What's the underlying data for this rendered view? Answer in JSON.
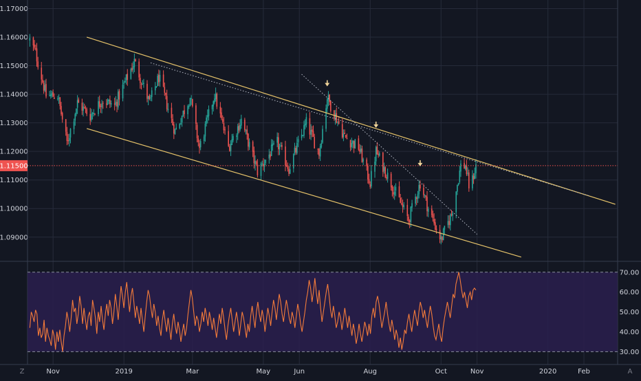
{
  "colors": {
    "background": "#131722",
    "grid": "#262b3a",
    "up": "#26a69a",
    "down": "#ef5350",
    "trendline": "#e6c36a",
    "rsi_line": "#f57c3a",
    "rsi_band": "#2a1f4d",
    "axis_text": "#d1d4dc",
    "price_label": "#ef5350"
  },
  "ui": {
    "bottom_left_button": "Z",
    "bottom_right_button": "A"
  },
  "chart_data": [
    {
      "type": "candlestick",
      "panel": "price",
      "x_range": [
        "2018-10-10",
        "2020-03-01"
      ],
      "ylim": [
        1.082,
        1.173
      ],
      "y_ticks": [
        "1.09000",
        "1.10000",
        "1.11000",
        "1.12000",
        "1.13000",
        "1.14000",
        "1.15000",
        "1.16000",
        "1.17000"
      ],
      "x_ticks": [
        {
          "label": "Nov",
          "date": "2018-11-01"
        },
        {
          "label": "2019",
          "date": "2019-01-01"
        },
        {
          "label": "Mar",
          "date": "2019-03-01"
        },
        {
          "label": "May",
          "date": "2019-05-01"
        },
        {
          "label": "Jun",
          "date": "2019-06-01"
        },
        {
          "label": "Aug",
          "date": "2019-08-01"
        },
        {
          "label": "Oct",
          "date": "2019-10-01"
        },
        {
          "label": "Nov",
          "date": "2019-11-01"
        },
        {
          "label": "2020",
          "date": "2020-01-01"
        },
        {
          "label": "Feb",
          "date": "2020-02-01"
        }
      ],
      "grid": true,
      "current_price": "1.11500",
      "price_path": [
        [
          "2018-10-12",
          1.159
        ],
        [
          "2018-10-17",
          1.1545
        ],
        [
          "2018-10-26",
          1.1395
        ],
        [
          "2018-11-05",
          1.1395
        ],
        [
          "2018-11-13",
          1.123
        ],
        [
          "2018-11-22",
          1.137
        ],
        [
          "2018-12-03",
          1.1325
        ],
        [
          "2018-12-13",
          1.138
        ],
        [
          "2018-12-24",
          1.136
        ],
        [
          "2019-01-10",
          1.1515
        ],
        [
          "2019-01-23",
          1.137
        ],
        [
          "2019-01-31",
          1.146
        ],
        [
          "2019-02-14",
          1.127
        ],
        [
          "2019-02-27",
          1.139
        ],
        [
          "2019-03-07",
          1.121
        ],
        [
          "2019-03-20",
          1.14
        ],
        [
          "2019-04-01",
          1.1215
        ],
        [
          "2019-04-12",
          1.131
        ],
        [
          "2019-04-26",
          1.113
        ],
        [
          "2019-05-13",
          1.123
        ],
        [
          "2019-05-23",
          1.114
        ],
        [
          "2019-06-07",
          1.13
        ],
        [
          "2019-06-18",
          1.1195
        ],
        [
          "2019-06-25",
          1.139
        ],
        [
          "2019-07-10",
          1.125
        ],
        [
          "2019-07-22",
          1.1215
        ],
        [
          "2019-08-01",
          1.109
        ],
        [
          "2019-08-06",
          1.12
        ],
        [
          "2019-08-20",
          1.108
        ],
        [
          "2019-09-03",
          1.096
        ],
        [
          "2019-09-13",
          1.109
        ],
        [
          "2019-09-20",
          1.1
        ],
        [
          "2019-10-01",
          1.089
        ],
        [
          "2019-10-10",
          1.098
        ],
        [
          "2019-10-18",
          1.115
        ],
        [
          "2019-10-22",
          1.115
        ],
        [
          "2019-10-25",
          1.108
        ],
        [
          "2019-10-28",
          1.11
        ],
        [
          "2019-10-31",
          1.115
        ]
      ],
      "trendlines": [
        {
          "name": "channel-top",
          "style": "solid",
          "from": [
            "2018-11-30",
            1.16
          ],
          "to": [
            "2020-02-28",
            1.1015
          ]
        },
        {
          "name": "channel-bottom",
          "style": "solid",
          "from": [
            "2018-11-30",
            1.128
          ],
          "to": [
            "2019-12-09",
            1.083
          ]
        },
        {
          "name": "dotted-top",
          "style": "dotted",
          "from": [
            "2019-01-24",
            1.151
          ],
          "to": [
            "2020-02-05",
            1.1045
          ]
        },
        {
          "name": "dotted-diagonal",
          "style": "dotted",
          "from": [
            "2019-06-03",
            1.147
          ],
          "to": [
            "2019-11-01",
            1.091
          ]
        }
      ],
      "price_line": {
        "value": 1.115,
        "style": "dotted"
      },
      "markers": [
        {
          "date": "2019-06-25",
          "value": 1.143
        },
        {
          "date": "2019-08-06",
          "value": 1.1285
        },
        {
          "date": "2019-09-13",
          "value": 1.115
        }
      ]
    },
    {
      "type": "line",
      "panel": "rsi",
      "ylim": [
        27,
        72
      ],
      "y_ticks": [
        "30.00",
        "40.00",
        "50.00",
        "60.00",
        "70.00"
      ],
      "levels": [
        30,
        70
      ],
      "series": [
        {
          "values": [
            42,
            50,
            48,
            45,
            51,
            49,
            38,
            42,
            37,
            39,
            46,
            35,
            42,
            38,
            36,
            33,
            41,
            38,
            31,
            40,
            35,
            41,
            35,
            30,
            38,
            43,
            50,
            46,
            40,
            47,
            56,
            50,
            52,
            44,
            49,
            58,
            53,
            44,
            52,
            46,
            41,
            48,
            50,
            43,
            56,
            52,
            47,
            39,
            50,
            45,
            53,
            46,
            41,
            49,
            54,
            48,
            56,
            52,
            44,
            50,
            59,
            53,
            46,
            55,
            63,
            58,
            52,
            60,
            65,
            57,
            50,
            58,
            62,
            55,
            47,
            53,
            49,
            44,
            52,
            46,
            40,
            48,
            55,
            61,
            58,
            52,
            47,
            54,
            50,
            43,
            48,
            42,
            38,
            46,
            51,
            45,
            40,
            47,
            42,
            36,
            44,
            49,
            43,
            39,
            45,
            41,
            35,
            40,
            44,
            38,
            42,
            49,
            55,
            61,
            57,
            50,
            43,
            48,
            46,
            40,
            44,
            50,
            45,
            52,
            48,
            43,
            50,
            46,
            41,
            47,
            42,
            37,
            43,
            49,
            44,
            52,
            47,
            41,
            36,
            43,
            48,
            52,
            46,
            40,
            45,
            50,
            45,
            38,
            44,
            50,
            47,
            42,
            37,
            44,
            40,
            48,
            53,
            47,
            42,
            50,
            55,
            49,
            45,
            51,
            47,
            40,
            46,
            52,
            48,
            43,
            50,
            56,
            52,
            46,
            53,
            59,
            55,
            49,
            45,
            51,
            56,
            52,
            47,
            44,
            50,
            47,
            42,
            48,
            54,
            50,
            44,
            40,
            45,
            50,
            56,
            60,
            66,
            62,
            55,
            60,
            67,
            60,
            54,
            61,
            52,
            45,
            50,
            55,
            60,
            64,
            58,
            51,
            47,
            53,
            48,
            42,
            45,
            50,
            47,
            41,
            46,
            52,
            47,
            42,
            48,
            43,
            38,
            44,
            40,
            34,
            38,
            44,
            39,
            35,
            40,
            45,
            42,
            38,
            44,
            39,
            48,
            52,
            47,
            55,
            58,
            54,
            48,
            42,
            46,
            50,
            55,
            49,
            44,
            40,
            46,
            42,
            36,
            41,
            38,
            32,
            37,
            31,
            35,
            41,
            39,
            45,
            49,
            44,
            40,
            46,
            51,
            47,
            43,
            50,
            55,
            52,
            47,
            51,
            46,
            42,
            48,
            53,
            49,
            43,
            38,
            36,
            40,
            44,
            38,
            35,
            42,
            47,
            51,
            55,
            51,
            47,
            53,
            59,
            57,
            64,
            67,
            70,
            66,
            61,
            57,
            60,
            56,
            52,
            58,
            60,
            56,
            61,
            62,
            61
          ]
        }
      ]
    }
  ]
}
